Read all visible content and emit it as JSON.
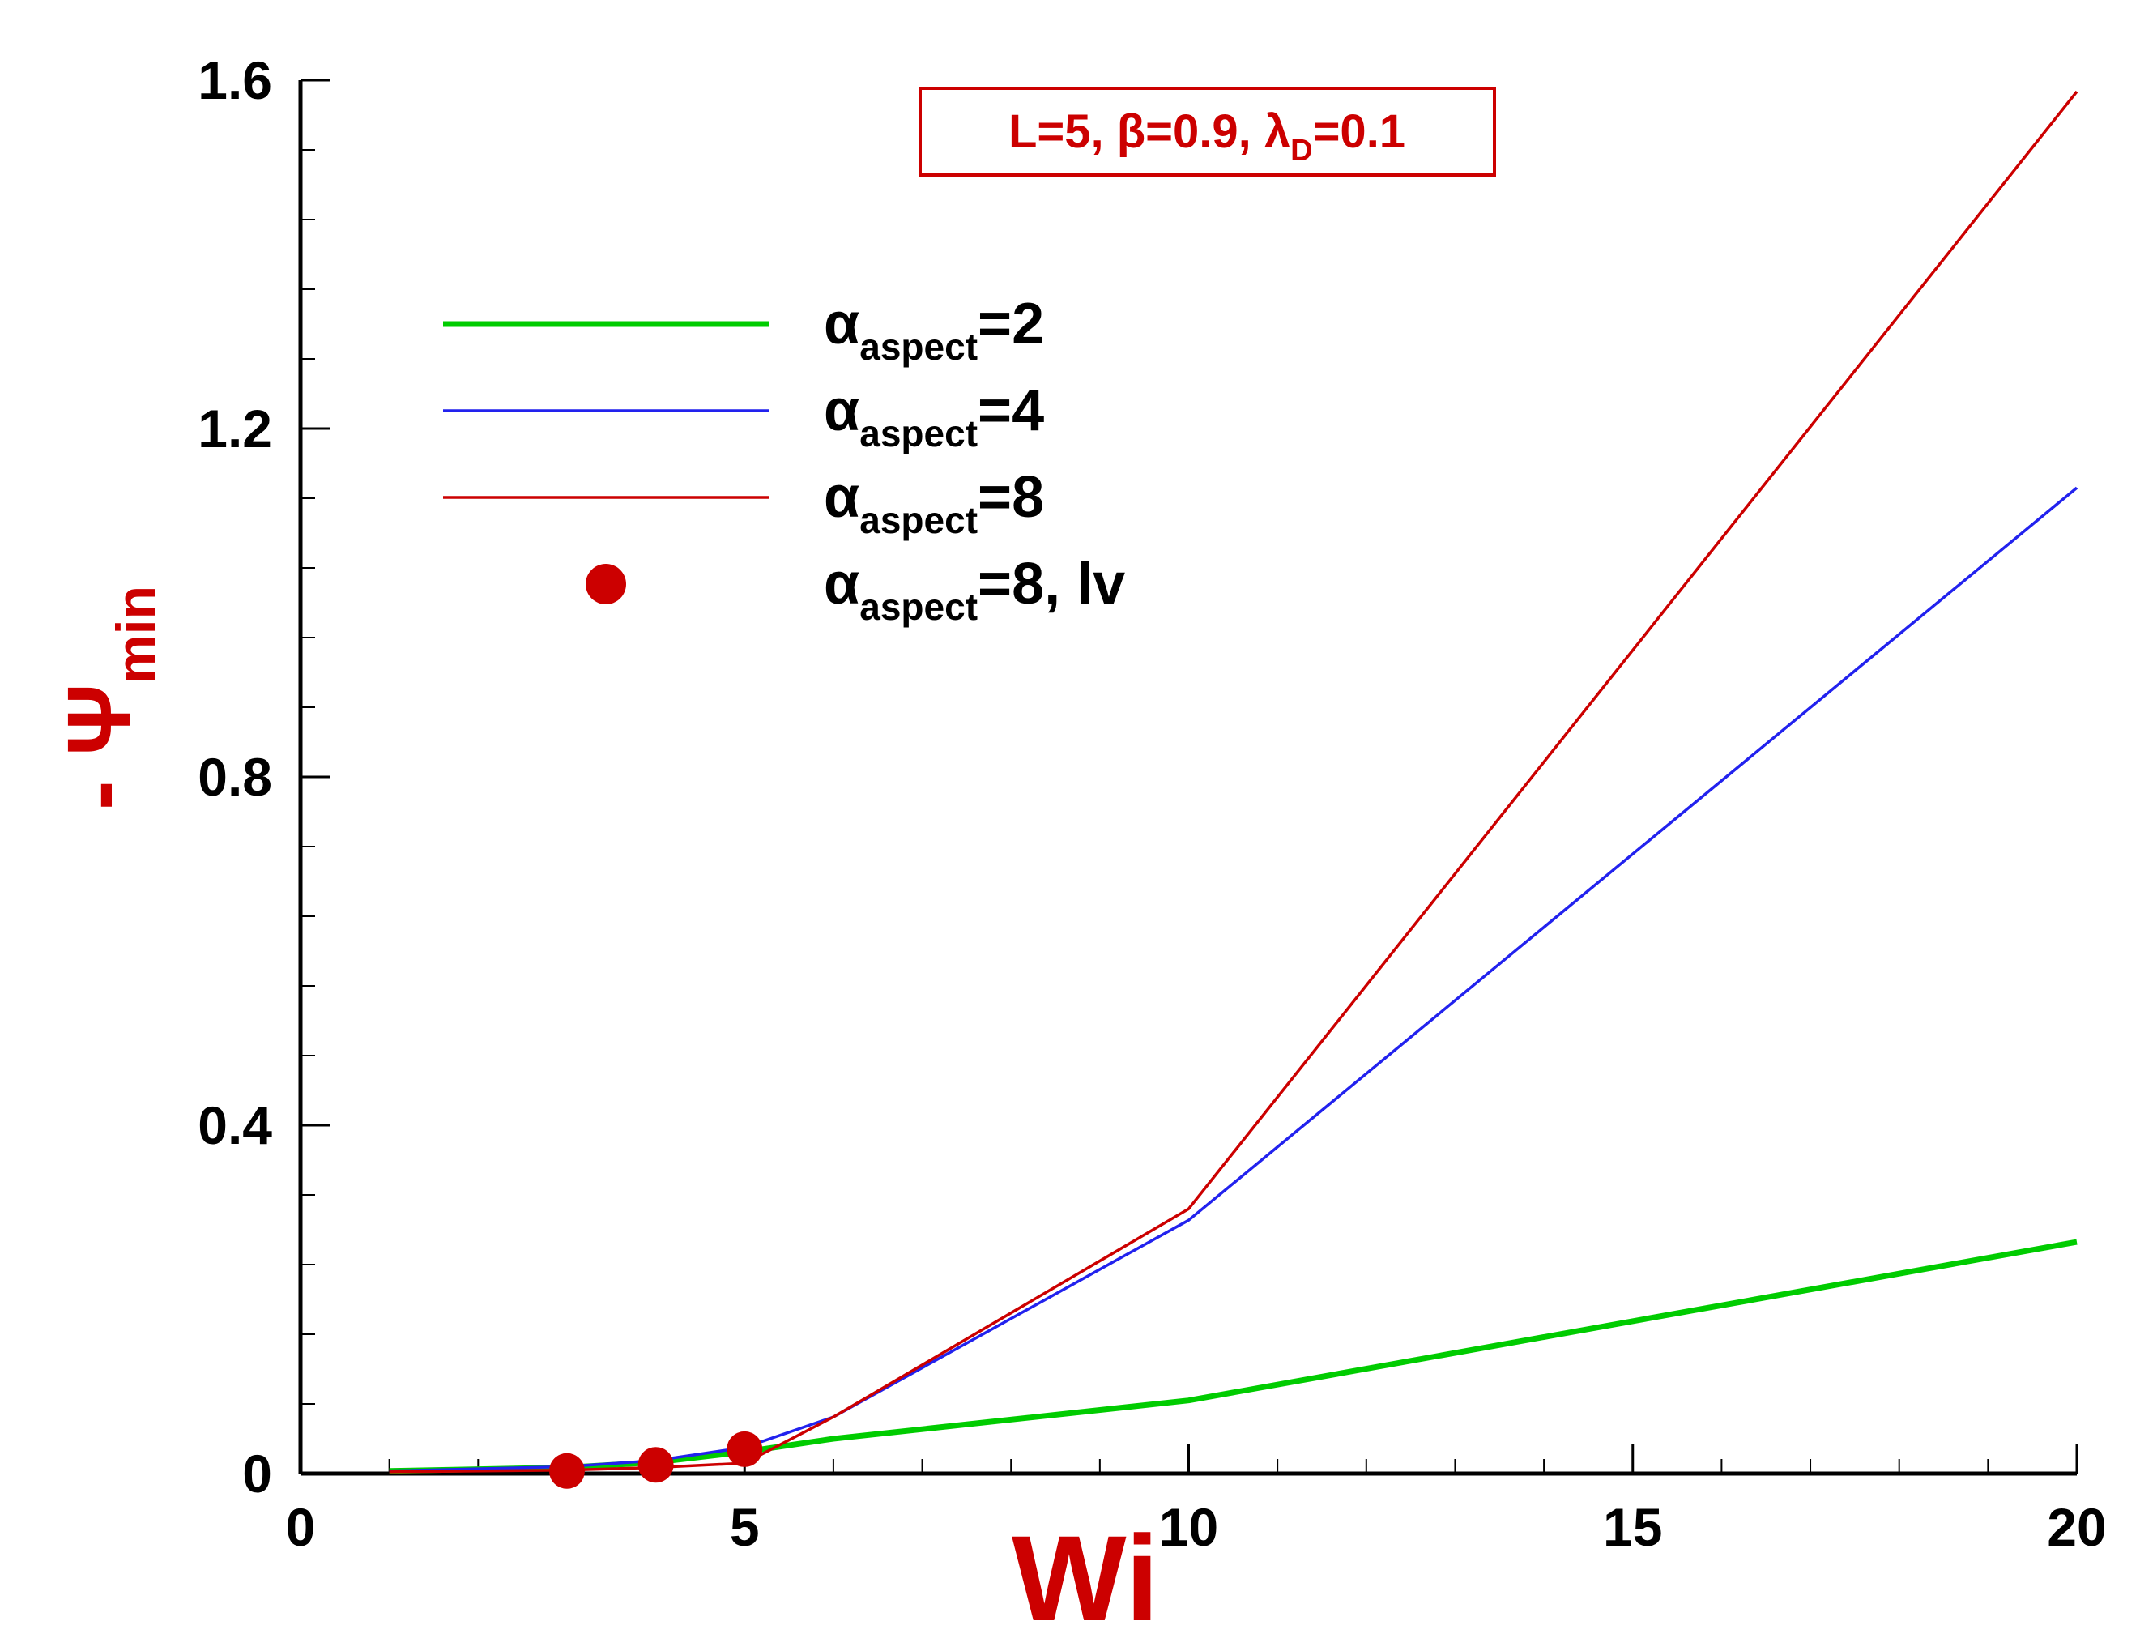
{
  "chart_data": {
    "type": "line",
    "annotation": [
      "L=5, β=0.9,  λ",
      "D",
      "=0.1"
    ],
    "xlabel": "Wi",
    "ylabel": [
      "-  Ψ",
      "min"
    ],
    "xlim": [
      0,
      20
    ],
    "ylim": [
      0,
      1.6
    ],
    "xticks": [
      0,
      5,
      10,
      15,
      20
    ],
    "yticks": [
      {
        "value": 0,
        "label": "0"
      },
      0.4,
      0.8,
      1.2,
      1.6
    ],
    "xminorticks": [
      1,
      2,
      3,
      4,
      6,
      7,
      8,
      9,
      11,
      12,
      13,
      14,
      16,
      17,
      18,
      19
    ],
    "yminorticks": [
      0.08,
      0.16,
      0.24,
      0.32,
      0.48,
      0.56,
      0.64,
      0.72,
      0.88,
      0.96,
      1.04,
      1.12,
      1.28,
      1.36,
      1.44,
      1.52
    ],
    "series": [
      {
        "name": [
          "α",
          "aspect",
          "=2"
        ],
        "color": "#00cc00",
        "mode": "line",
        "width": 7,
        "x": [
          1,
          3,
          4,
          5,
          6,
          10,
          20
        ],
        "values": [
          0.003,
          0.007,
          0.013,
          0.025,
          0.04,
          0.084,
          0.266
        ]
      },
      {
        "name": [
          "α",
          "aspect",
          "=4"
        ],
        "color": "#2222ee",
        "mode": "line",
        "width": 3.5,
        "x": [
          1,
          3,
          4,
          5,
          6,
          10,
          20
        ],
        "values": [
          0.003,
          0.008,
          0.015,
          0.03,
          0.065,
          0.291,
          1.132
        ]
      },
      {
        "name": [
          "α",
          "aspect",
          "=8"
        ],
        "color": "#cc0000",
        "mode": "line",
        "width": 3.5,
        "x": [
          1,
          3,
          4,
          5,
          6,
          10,
          20
        ],
        "values": [
          0.002,
          0.004,
          0.007,
          0.012,
          0.065,
          0.304,
          1.587
        ]
      },
      {
        "name": [
          "α",
          "aspect",
          "=8, lv"
        ],
        "color": "#cc0000",
        "mode": "markers",
        "x": [
          3,
          4,
          5
        ],
        "values": [
          0.003,
          0.01,
          0.028
        ]
      }
    ]
  }
}
